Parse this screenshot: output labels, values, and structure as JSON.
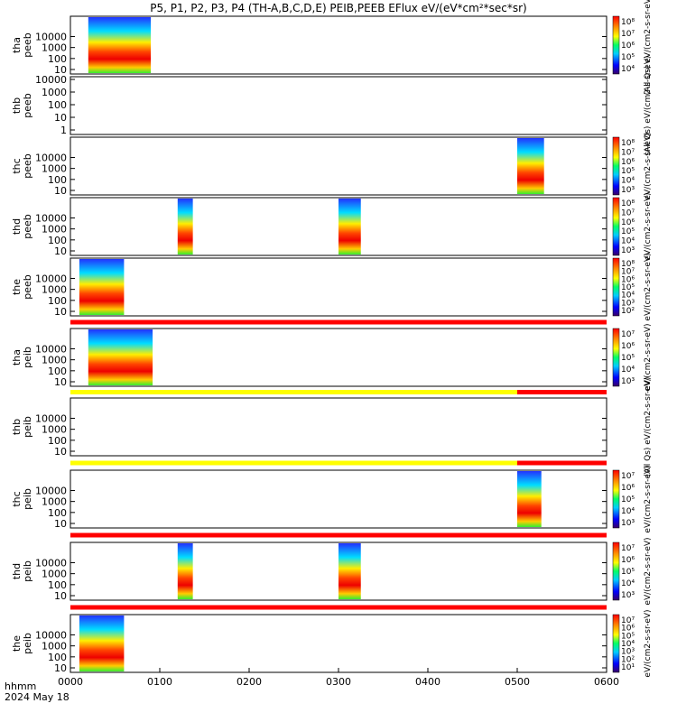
{
  "chart_data": {
    "type": "heatmap",
    "title": "P5, P1, P2, P3, P4 (TH-A,B,C,D,E) PEIB,PEEB EFlux eV/(eV*cm²*sec*sr)",
    "x_axis": {
      "range": [
        "0000",
        "0600"
      ],
      "tick_labels": [
        "0000",
        "0100",
        "0200",
        "0300",
        "0400",
        "0500",
        "0600"
      ],
      "label_line1": "hhmm",
      "label_line2": "2024 May 18"
    },
    "y_ticks": [
      "10000",
      "1000",
      "100",
      "10"
    ],
    "y_ticks_short": [
      "10000",
      "1000",
      "100",
      "10",
      "1"
    ],
    "panels": [
      {
        "ylabel1": "tha",
        "ylabel2": "peeb",
        "bursts": [
          [
            0.2,
            0.9
          ]
        ],
        "cb_ticks": [
          "10⁸",
          "10⁷",
          "10⁶",
          "10⁵",
          "10⁴"
        ],
        "cb_label": "(All Qs) eV/(cm2-s-sr-eV)"
      },
      {
        "ylabel1": "thb",
        "ylabel2": "peeb",
        "bursts": [],
        "cb_ticks": [],
        "cb_label": "(All Qs) eV/(cm2-s-sr-eV)"
      },
      {
        "ylabel1": "thc",
        "ylabel2": "peeb",
        "bursts": [
          [
            5.0,
            5.3
          ]
        ],
        "cb_ticks": [
          "10⁸",
          "10⁷",
          "10⁶",
          "10⁵",
          "10⁴",
          "10³"
        ],
        "cb_label": "eV/(cm2-s-sr-eV)"
      },
      {
        "ylabel1": "thd",
        "ylabel2": "peeb",
        "bursts": [
          [
            1.2,
            1.37
          ],
          [
            3.0,
            3.25
          ]
        ],
        "cb_ticks": [
          "10⁸",
          "10⁷",
          "10⁶",
          "10⁵",
          "10⁴",
          "10³"
        ],
        "cb_label": "eV/(cm2-s-sr-eV)"
      },
      {
        "ylabel1": "the",
        "ylabel2": "peeb",
        "bursts": [
          [
            0.1,
            0.6
          ]
        ],
        "cb_ticks": [
          "10⁸",
          "10⁷",
          "10⁶",
          "10⁵",
          "10⁴",
          "10³",
          "10²"
        ],
        "cb_label": "eV/(cm2-s-sr-eV)"
      },
      {
        "ylabel1": "tha",
        "ylabel2": "peib",
        "bursts": [
          [
            0.2,
            0.92
          ]
        ],
        "cb_ticks": [
          "10⁷",
          "10⁶",
          "10⁵",
          "10⁴",
          "10³"
        ],
        "cb_label": "eV/(cm2-s-sr-eV)"
      },
      {
        "ylabel1": "thb",
        "ylabel2": "peib",
        "bursts": [],
        "cb_ticks": [],
        "cb_label": "(All Qs) eV/(cm2-s-sr-eV)"
      },
      {
        "ylabel1": "thc",
        "ylabel2": "peib",
        "bursts": [
          [
            5.0,
            5.27
          ]
        ],
        "cb_ticks": [
          "10⁷",
          "10⁶",
          "10⁵",
          "10⁴",
          "10³"
        ],
        "cb_label": "eV/(cm2-s-sr-eV)"
      },
      {
        "ylabel1": "thd",
        "ylabel2": "peib",
        "bursts": [
          [
            1.2,
            1.37
          ],
          [
            3.0,
            3.25
          ]
        ],
        "cb_ticks": [
          "10⁷",
          "10⁶",
          "10⁵",
          "10⁴",
          "10³"
        ],
        "cb_label": "eV/(cm2-s-sr-eV)"
      },
      {
        "ylabel1": "the",
        "ylabel2": "peib",
        "bursts": [
          [
            0.1,
            0.6
          ]
        ],
        "cb_ticks": [
          "10⁷",
          "10⁶",
          "10⁵",
          "10⁴",
          "10³",
          "10²",
          "10¹"
        ],
        "cb_label": "eV/(cm2-s-sr-eV)"
      }
    ],
    "status_bars": [
      {
        "after_panel": 5,
        "segments": [
          {
            "x0": 0,
            "x1": 6,
            "color": "#ff0000"
          }
        ]
      },
      {
        "after_panel": 6,
        "segments": [
          {
            "x0": 0,
            "x1": 5,
            "color": "#ffff00"
          },
          {
            "x0": 5,
            "x1": 6,
            "color": "#ff0000"
          }
        ]
      },
      {
        "after_panel": 7,
        "segments": [
          {
            "x0": 0,
            "x1": 5,
            "color": "#ffff00"
          },
          {
            "x0": 5,
            "x1": 6,
            "color": "#ff0000"
          }
        ]
      },
      {
        "after_panel": 8,
        "segments": [
          {
            "x0": 0,
            "x1": 6,
            "color": "#ff0000"
          }
        ]
      },
      {
        "after_panel": 9,
        "segments": [
          {
            "x0": 0,
            "x1": 6,
            "color": "#ff0000"
          }
        ]
      }
    ]
  }
}
